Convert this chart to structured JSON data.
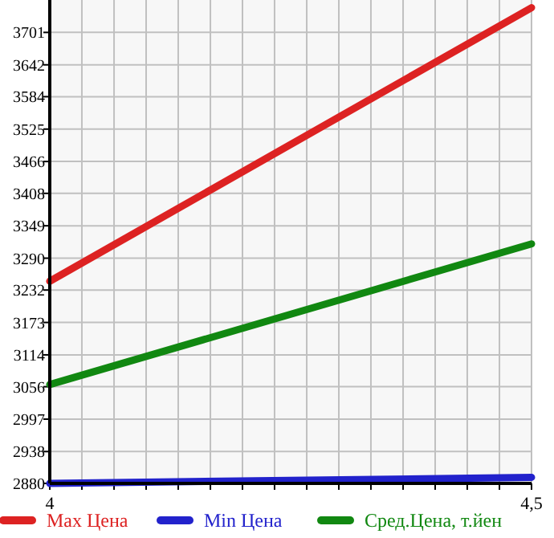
{
  "chart_data": {
    "type": "line",
    "x": [
      4,
      4.5
    ],
    "series": [
      {
        "name": "Max Цена",
        "color": "#dd2222",
        "values": [
          3248,
          3746
        ]
      },
      {
        "name": "Min Цена",
        "color": "#2222cc",
        "values": [
          2880,
          2891
        ]
      },
      {
        "name": "Сред.Цена, т.йен",
        "color": "#118811",
        "values": [
          3060,
          3316
        ]
      }
    ],
    "xlim": [
      4,
      4.5
    ],
    "xticks": [
      4,
      {
        "value": 4.0333,
        "label": null
      },
      {
        "value": 4.0667,
        "label": null
      },
      {
        "value": 4.1,
        "label": null
      },
      {
        "value": 4.1333,
        "label": null
      },
      {
        "value": 4.1667,
        "label": null
      },
      {
        "value": 4.2,
        "label": null
      },
      {
        "value": 4.2333,
        "label": null
      },
      {
        "value": 4.2667,
        "label": null
      },
      {
        "value": 4.3,
        "label": null
      },
      {
        "value": 4.3333,
        "label": null
      },
      {
        "value": 4.3667,
        "label": null
      },
      {
        "value": 4.4,
        "label": null
      },
      {
        "value": 4.4333,
        "label": null
      },
      {
        "value": 4.4667,
        "label": null
      },
      {
        "value": 4.5,
        "label": "4,5"
      }
    ],
    "ylim": [
      2880,
      3760
    ],
    "yticks": [
      2880,
      2938,
      2997,
      3056,
      3114,
      3173,
      3232,
      3290,
      3349,
      3408,
      3466,
      3525,
      3584,
      3642,
      3701
    ],
    "grid": true,
    "legend": "bottom",
    "marker": "none",
    "line_style": "solid"
  }
}
